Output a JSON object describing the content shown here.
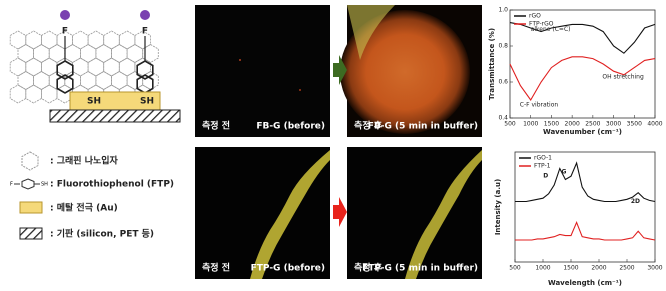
{
  "schematic": {
    "sh_labels": [
      "SH",
      "SH"
    ],
    "f_labels": [
      "F",
      "F"
    ]
  },
  "legend": [
    ": 그래핀 나노입자",
    ": Fluorothiophenol (FTP)",
    ": 메탈 전극 (Au)",
    ": 기판 (silicon, PET 등)"
  ],
  "images": [
    {
      "left": "측정 전",
      "right": "FB-G (before)"
    },
    {
      "left": "측정 후",
      "right": "FB-G (5 min in buffer)"
    },
    {
      "left": "측정 전",
      "right": "FTP-G (before)"
    },
    {
      "left": "측정 후",
      "right": "FTP-G (5 min in buffer)"
    }
  ],
  "chart_data": [
    {
      "type": "line",
      "x_label": "Wavenumber (cm⁻¹)",
      "y_label": "Transmittance (%)",
      "x": [
        500,
        750,
        1000,
        1250,
        1500,
        1750,
        2000,
        2250,
        2500,
        2750,
        3000,
        3250,
        3500,
        3750,
        4000
      ],
      "series": [
        {
          "name": "rGO",
          "color": "#111111",
          "values": [
            0.93,
            0.92,
            0.9,
            0.88,
            0.9,
            0.91,
            0.92,
            0.92,
            0.91,
            0.88,
            0.8,
            0.76,
            0.82,
            0.9,
            0.92
          ]
        },
        {
          "name": "FTP-rGO",
          "color": "#e02020",
          "values": [
            0.7,
            0.58,
            0.5,
            0.6,
            0.68,
            0.72,
            0.74,
            0.74,
            0.73,
            0.7,
            0.66,
            0.64,
            0.68,
            0.72,
            0.73
          ]
        }
      ],
      "annotations": [
        "alkene (C=C)",
        "OH stretching",
        "C-F vibration"
      ],
      "xlim": [
        500,
        4000
      ],
      "xticks": [
        500,
        1000,
        1500,
        2000,
        2500,
        3000,
        3500,
        4000
      ],
      "ylim": [
        0.4,
        1.0
      ],
      "yticks": [
        {
          "value": 0.4,
          "label": "0.4"
        },
        {
          "value": 0.6,
          "label": "0.6"
        },
        {
          "value": 0.8,
          "label": "0.8"
        },
        {
          "value": 1.0,
          "label": "1.0"
        }
      ],
      "legend": "upper left"
    },
    {
      "type": "line",
      "x_label": "Wavelength (cm⁻¹)",
      "y_label": "Intensity (a.u)",
      "x": [
        500,
        600,
        700,
        800,
        900,
        1000,
        1100,
        1200,
        1300,
        1400,
        1500,
        1600,
        1700,
        1800,
        1900,
        2000,
        2100,
        2200,
        2300,
        2400,
        2500,
        2600,
        2700,
        2800,
        2900,
        3000
      ],
      "series": [
        {
          "name": "rGO-1",
          "color": "#111111",
          "values": [
            0.55,
            0.55,
            0.55,
            0.56,
            0.57,
            0.58,
            0.62,
            0.7,
            0.85,
            0.75,
            0.78,
            0.9,
            0.68,
            0.6,
            0.57,
            0.56,
            0.55,
            0.55,
            0.55,
            0.56,
            0.57,
            0.59,
            0.63,
            0.58,
            0.56,
            0.55
          ]
        },
        {
          "name": "FTP-1",
          "color": "#e02020",
          "values": [
            0.2,
            0.2,
            0.2,
            0.2,
            0.21,
            0.21,
            0.22,
            0.23,
            0.25,
            0.24,
            0.24,
            0.36,
            0.23,
            0.22,
            0.21,
            0.21,
            0.2,
            0.2,
            0.2,
            0.2,
            0.21,
            0.22,
            0.28,
            0.22,
            0.21,
            0.2
          ]
        }
      ],
      "annotations": [
        "D",
        "G",
        "2D"
      ],
      "xlim": [
        500,
        3000
      ],
      "xticks": [
        500,
        1000,
        1500,
        2000,
        2500,
        3000
      ],
      "ylim": [
        0,
        1
      ],
      "yticks": [],
      "legend": "upper left"
    }
  ]
}
